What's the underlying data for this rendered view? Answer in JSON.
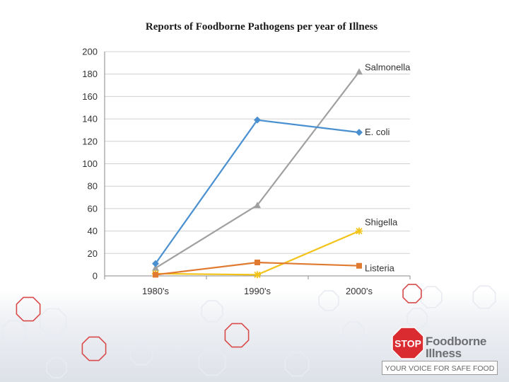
{
  "chart_data": {
    "type": "line",
    "title": "Reports of Foodborne Pathogens per year of Illness",
    "categories": [
      "1980's",
      "1990's",
      "2000's"
    ],
    "ylim": [
      0,
      200
    ],
    "yticks": [
      0,
      20,
      40,
      60,
      80,
      100,
      120,
      140,
      160,
      180,
      200
    ],
    "grid": true,
    "legend": "end-of-line labels",
    "series": [
      {
        "name": "Salmonella",
        "values": [
          7,
          63,
          182
        ],
        "color": "#a0a0a0",
        "marker": "triangle"
      },
      {
        "name": "E. coli",
        "values": [
          11,
          139,
          128
        ],
        "color": "#4a90d0",
        "marker": "diamond"
      },
      {
        "name": "Shigella",
        "values": [
          2,
          1,
          40
        ],
        "color": "#f2c318",
        "marker": "star"
      },
      {
        "name": "Listeria",
        "values": [
          1,
          12,
          9
        ],
        "color": "#e07a30",
        "marker": "square"
      }
    ]
  },
  "brand": {
    "stop_text": "STOP",
    "line1": "Foodborne",
    "line2": "Illness",
    "tagline": "YOUR VOICE FOR SAFE FOOD",
    "stop_color": "#d92b30"
  },
  "decor": {
    "octagon_red": "#d94a4a",
    "octagon_light": "#e8ebf1"
  }
}
